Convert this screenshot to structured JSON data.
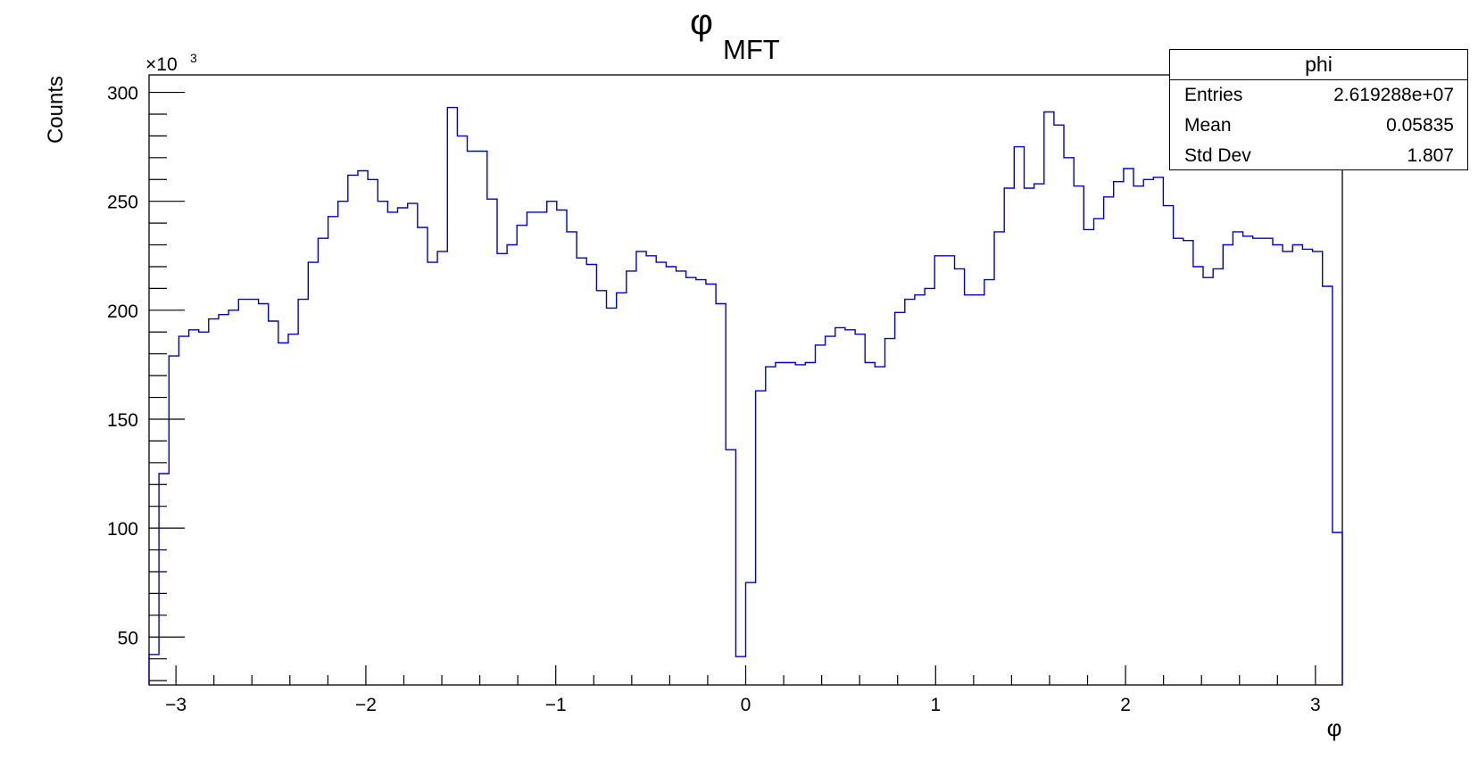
{
  "chart_data": {
    "type": "histogram",
    "title": {
      "main": "φ",
      "subscript": "MFT"
    },
    "xlabel": "φ",
    "ylabel": "Counts",
    "y_multiplier_label": "×10",
    "y_multiplier_exponent": "3",
    "xlim": [
      -3.1416,
      3.1416
    ],
    "ylim": [
      28,
      308
    ],
    "x_ticks": [
      -3,
      -2,
      -1,
      0,
      1,
      2,
      3
    ],
    "x_tick_labels": [
      "−3",
      "−2",
      "−1",
      "0",
      "1",
      "2",
      "3"
    ],
    "y_ticks": [
      50,
      100,
      150,
      200,
      250,
      300
    ],
    "y_tick_labels": [
      "50",
      "100",
      "150",
      "200",
      "250",
      "300"
    ],
    "bin_width": 0.0498,
    "y_values_thousands": [
      42,
      125,
      179,
      188,
      191,
      190,
      196,
      198,
      200,
      205,
      205,
      203,
      195,
      185,
      189,
      205,
      222,
      233,
      243,
      250,
      262,
      264,
      260,
      250,
      245,
      247,
      249,
      238,
      222,
      227,
      293,
      280,
      273,
      273,
      251,
      226,
      230,
      239,
      245,
      245,
      250,
      246,
      236,
      224,
      221,
      209,
      201,
      208,
      218,
      227,
      225,
      222,
      220,
      218,
      215,
      214,
      212,
      203,
      136,
      41,
      75,
      163,
      174,
      176,
      176,
      175,
      176,
      184,
      188,
      192,
      191,
      189,
      176,
      174,
      187,
      199,
      205,
      207,
      210,
      225,
      225,
      219,
      207,
      207,
      214,
      236,
      256,
      275,
      256,
      258,
      291,
      285,
      270,
      257,
      237,
      242,
      252,
      259,
      265,
      257,
      260,
      261,
      248,
      233,
      232,
      220,
      215,
      219,
      230,
      236,
      234,
      233,
      233,
      230,
      227,
      230,
      228,
      227,
      211,
      98
    ]
  },
  "stats_box": {
    "title": "phi",
    "rows": [
      {
        "label": "Entries",
        "value": "2.619288e+07"
      },
      {
        "label": "Mean",
        "value": "0.05835"
      },
      {
        "label": "Std Dev",
        "value": "1.807"
      }
    ]
  },
  "colors": {
    "histogram_line": "#0000cc",
    "axes": "#000000",
    "background": "#ffffff"
  }
}
